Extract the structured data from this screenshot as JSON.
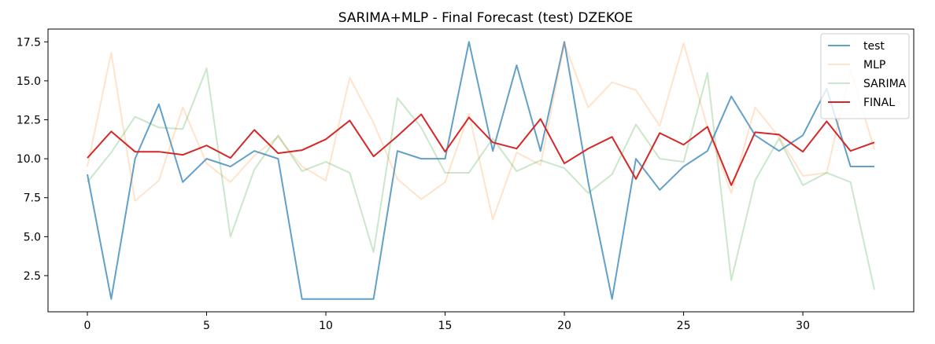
{
  "chart_data": {
    "type": "line",
    "title": "SARIMA+MLP - Final Forecast (test) DZEKOE",
    "xlabel": "",
    "ylabel": "",
    "xlim": [
      -1.65,
      34.65
    ],
    "ylim": [
      0.18,
      18.32
    ],
    "xticks": [
      0,
      5,
      10,
      15,
      20,
      25,
      30
    ],
    "xtick_labels": [
      "0",
      "5",
      "10",
      "15",
      "20",
      "25",
      "30"
    ],
    "yticks": [
      2.5,
      5.0,
      7.5,
      10.0,
      12.5,
      15.0,
      17.5
    ],
    "ytick_labels": [
      "2.5",
      "5.0",
      "7.5",
      "10.0",
      "12.5",
      "15.0",
      "17.5"
    ],
    "grid": false,
    "legend_position": "upper right",
    "x": [
      0,
      1,
      2,
      3,
      4,
      5,
      6,
      7,
      8,
      9,
      10,
      11,
      12,
      13,
      14,
      15,
      16,
      17,
      18,
      19,
      20,
      21,
      22,
      23,
      24,
      25,
      26,
      27,
      28,
      29,
      30,
      31,
      32,
      33
    ],
    "series": [
      {
        "name": "test",
        "color": "#1f77b4",
        "opacity": 0.7,
        "values": [
          9.0,
          1.0,
          10.0,
          13.5,
          8.5,
          10.0,
          9.5,
          10.5,
          10.0,
          1.0,
          1.0,
          1.0,
          1.0,
          10.5,
          10.0,
          10.0,
          17.5,
          10.5,
          16.0,
          10.5,
          17.5,
          8.5,
          1.0,
          10.0,
          8.0,
          9.5,
          10.5,
          14.0,
          11.5,
          10.5,
          11.5,
          14.5,
          9.5,
          9.5
        ]
      },
      {
        "name": "MLP",
        "color": "#ff7f0e",
        "opacity": 0.22,
        "values": [
          9.5,
          16.8,
          7.3,
          8.6,
          13.3,
          9.7,
          8.5,
          10.2,
          11.4,
          9.5,
          8.6,
          15.2,
          12.3,
          8.7,
          7.4,
          8.5,
          12.9,
          6.1,
          10.4,
          9.6,
          17.4,
          13.3,
          14.9,
          14.4,
          12.1,
          17.4,
          12.0,
          7.8,
          13.3,
          11.4,
          8.9,
          9.1,
          15.7,
          10.6
        ]
      },
      {
        "name": "SARIMA",
        "color": "#2ca02c",
        "opacity": 0.25,
        "values": [
          8.5,
          10.4,
          12.7,
          12.0,
          11.9,
          15.8,
          5.0,
          9.3,
          11.5,
          9.2,
          9.8,
          9.1,
          4.0,
          13.9,
          12.0,
          9.1,
          9.1,
          11.3,
          9.2,
          9.9,
          9.4,
          7.8,
          9.0,
          12.2,
          10.0,
          9.8,
          15.5,
          2.2,
          8.6,
          11.3,
          8.3,
          9.1,
          8.5,
          1.6
        ]
      },
      {
        "name": "FINAL",
        "color": "#d62728",
        "opacity": 1.0,
        "values": [
          10.05,
          11.75,
          10.45,
          10.45,
          10.25,
          10.85,
          10.05,
          11.85,
          10.35,
          10.55,
          11.25,
          12.45,
          10.15,
          11.45,
          12.85,
          10.45,
          12.65,
          11.05,
          10.65,
          12.55,
          9.7,
          10.65,
          11.4,
          8.7,
          11.65,
          10.9,
          12.05,
          8.3,
          11.7,
          11.55,
          10.45,
          12.4,
          10.5,
          11.05
        ]
      }
    ]
  }
}
